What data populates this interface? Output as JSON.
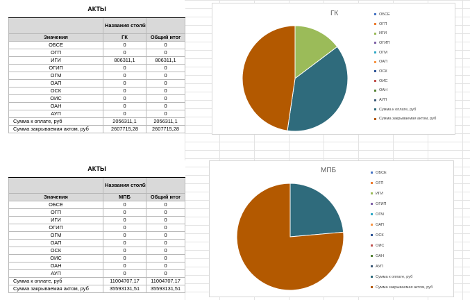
{
  "tables": [
    {
      "title": "АКТЫ",
      "col_header": "Названия столбцов",
      "values_label": "Значения",
      "col_name": "ГК",
      "total_label": "Общий итог",
      "rows": [
        {
          "label": "ОБСЕ",
          "v": "0",
          "t": "0"
        },
        {
          "label": "ОГП",
          "v": "0",
          "t": "0"
        },
        {
          "label": "ИГИ",
          "v": "806311,1",
          "t": "806311,1"
        },
        {
          "label": "ОГИП",
          "v": "0",
          "t": "0"
        },
        {
          "label": "ОГМ",
          "v": "0",
          "t": "0"
        },
        {
          "label": "ОАП",
          "v": "0",
          "t": "0"
        },
        {
          "label": "ОСК",
          "v": "0",
          "t": "0"
        },
        {
          "label": "ОИС",
          "v": "0",
          "t": "0"
        },
        {
          "label": "ОАН",
          "v": "0",
          "t": "0"
        },
        {
          "label": "АУП",
          "v": "0",
          "t": "0"
        },
        {
          "label": "Сумма к оплате, руб",
          "v": "2056311,1",
          "t": "2056311,1"
        },
        {
          "label": "Сумма закрываемая актом, руб",
          "v": "2607715,28",
          "t": "2607715,28"
        }
      ]
    },
    {
      "title": "АКТЫ",
      "col_header": "Названия столбцов",
      "values_label": "Значения",
      "col_name": "МПБ",
      "total_label": "Общий итог",
      "rows": [
        {
          "label": "ОБСЕ",
          "v": "0",
          "t": "0"
        },
        {
          "label": "ОГП",
          "v": "0",
          "t": "0"
        },
        {
          "label": "ИГИ",
          "v": "0",
          "t": "0"
        },
        {
          "label": "ОГИП",
          "v": "0",
          "t": "0"
        },
        {
          "label": "ОГМ",
          "v": "0",
          "t": "0"
        },
        {
          "label": "ОАП",
          "v": "0",
          "t": "0"
        },
        {
          "label": "ОСК",
          "v": "0",
          "t": "0"
        },
        {
          "label": "ОИС",
          "v": "0",
          "t": "0"
        },
        {
          "label": "ОАН",
          "v": "0",
          "t": "0"
        },
        {
          "label": "АУП",
          "v": "0",
          "t": "0"
        },
        {
          "label": "Сумма к оплате, руб",
          "v": "11004707,17",
          "t": "11004707,17"
        },
        {
          "label": "Сумма закрываемая актом, руб",
          "v": "35593131,51",
          "t": "35593131,51"
        }
      ]
    }
  ],
  "legend_colors": [
    "#4472c4",
    "#ed7d31",
    "#9bbb59",
    "#7f62a7",
    "#2ea8c6",
    "#f79646",
    "#2f5597",
    "#c0504d",
    "#548235",
    "#3c5a78",
    "#2f6b7c",
    "#b35900"
  ],
  "chart_data": [
    {
      "type": "pie",
      "title": "ГК",
      "labels": [
        "ОБСЕ",
        "ОГП",
        "ИГИ",
        "ОГИП",
        "ОГМ",
        "ОАП",
        "ОСК",
        "ОИС",
        "ОАН",
        "АУП",
        "Сумма к оплате, руб",
        "Сумма закрываемая актом, руб"
      ],
      "values": [
        0,
        0,
        806311.1,
        0,
        0,
        0,
        0,
        0,
        0,
        0,
        2056311.1,
        2607715.28
      ],
      "colors": [
        "#4472c4",
        "#ed7d31",
        "#9bbb59",
        "#7f62a7",
        "#2ea8c6",
        "#f79646",
        "#2f5597",
        "#c0504d",
        "#548235",
        "#3c5a78",
        "#2f6b7c",
        "#b35900"
      ],
      "legend_position": "right"
    },
    {
      "type": "pie",
      "title": "МПБ",
      "labels": [
        "ОБСЕ",
        "ОГП",
        "ИГИ",
        "ОГИП",
        "ОГМ",
        "ОАП",
        "ОСК",
        "ОИС",
        "ОАН",
        "АУП",
        "Сумма к оплате, руб",
        "Сумма закрываемая актом, руб"
      ],
      "values": [
        0,
        0,
        0,
        0,
        0,
        0,
        0,
        0,
        0,
        0,
        11004707.17,
        35593131.51
      ],
      "colors": [
        "#4472c4",
        "#ed7d31",
        "#9bbb59",
        "#7f62a7",
        "#2ea8c6",
        "#f79646",
        "#2f5597",
        "#c0504d",
        "#548235",
        "#3c5a78",
        "#2f6b7c",
        "#b35900"
      ],
      "legend_position": "right"
    }
  ]
}
